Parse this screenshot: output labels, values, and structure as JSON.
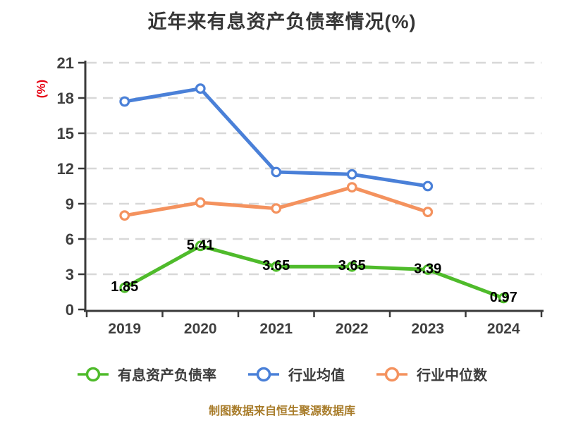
{
  "title": "近年来有息资产负债率情况(%)",
  "footer": "制图数据来自恒生聚源数据库",
  "chart_data": {
    "type": "line",
    "title": "近年来有息资产负债率情况(%)",
    "xlabel": "",
    "ylabel": "(%)",
    "categories": [
      "2019",
      "2020",
      "2021",
      "2022",
      "2023",
      "2024"
    ],
    "series": [
      {
        "name": "有息资产负债率",
        "color": "#4fbb2b",
        "show_labels": true,
        "values": [
          1.85,
          5.41,
          3.65,
          3.65,
          3.39,
          0.97
        ],
        "labels": [
          "1.85",
          "5.41",
          "3.65",
          "3.65",
          "3.39",
          "0.97"
        ]
      },
      {
        "name": "行业均值",
        "color": "#4a80d8",
        "show_labels": false,
        "values": [
          17.7,
          18.8,
          11.7,
          11.5,
          10.5,
          null
        ],
        "labels": []
      },
      {
        "name": "行业中位数",
        "color": "#f4925e",
        "show_labels": false,
        "values": [
          8.0,
          9.1,
          8.6,
          10.4,
          8.3,
          null
        ],
        "labels": []
      }
    ],
    "ylim": [
      0,
      21
    ],
    "y_ticks": [
      0,
      3,
      6,
      9,
      12,
      15,
      18,
      21
    ],
    "grid": "horizontal-dashed",
    "legend_position": "bottom",
    "colors": {
      "axis": "#3a3a3a",
      "grid": "#d8d8d8",
      "tick_label": "#3f3f3f",
      "y_axis_label": "#e60012",
      "data_label": "#000000",
      "footer": "#a87c2a",
      "marker_fill": "#ffffff"
    }
  }
}
